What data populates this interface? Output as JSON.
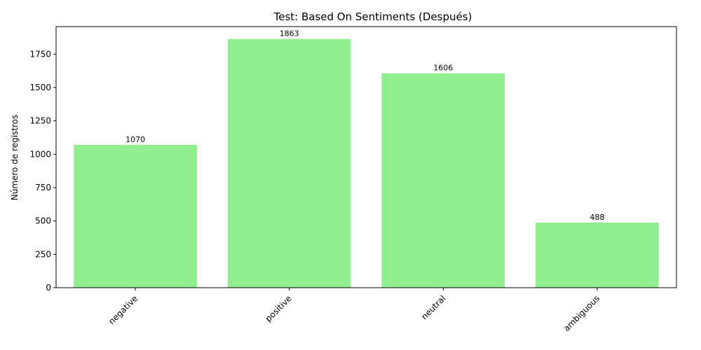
{
  "chart_data": {
    "type": "bar",
    "title": "Test: Based On Sentiments (Después)",
    "xlabel": "",
    "ylabel": "Número de registros",
    "categories": [
      "negative",
      "positive",
      "neutral",
      "ambiguous"
    ],
    "values": [
      1070,
      1863,
      1606,
      488
    ],
    "ylim": [
      0,
      1956
    ],
    "yticks": [
      0,
      250,
      500,
      750,
      1000,
      1250,
      1500,
      1750
    ],
    "bar_color": "#90ee90",
    "grid": false,
    "xtick_rotation": 45
  }
}
